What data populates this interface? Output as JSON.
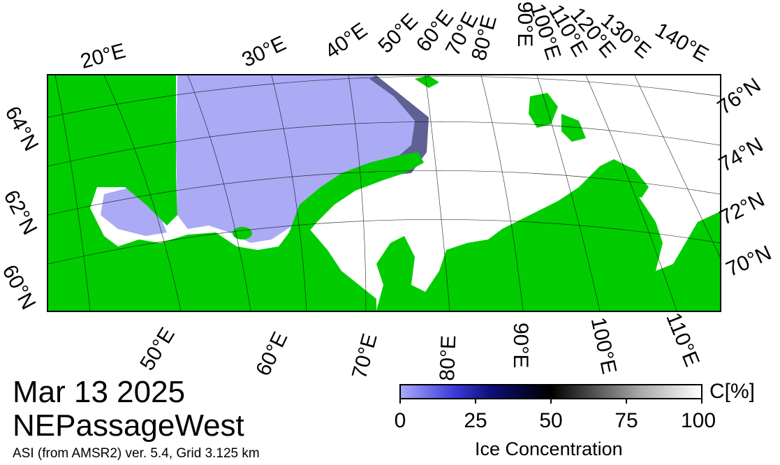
{
  "date": "Mar 13 2025",
  "region": "NEPassageWest",
  "source": "ASI (from AMSR2) ver. 5.4,  Grid 3.125 km",
  "colors": {
    "land": "#00cc00",
    "open_water": "#aaaaf5",
    "ice": "#ffffff",
    "frame": "#000000"
  },
  "top_lon_labels": [
    "20°E",
    "30°E",
    "40°E",
    "50°E",
    "60°E",
    "70°E",
    "80°E",
    "90°E",
    "100°E",
    "110°E",
    "120°E",
    "130°E",
    "140°E"
  ],
  "bottom_lon_labels": [
    "50°E",
    "60°E",
    "70°E",
    "80°E",
    "90°E",
    "100°E",
    "110°E"
  ],
  "left_lat_labels": [
    "64°N",
    "62°N",
    "60°N"
  ],
  "right_lat_labels": [
    "76°N",
    "74°N",
    "72°N",
    "70°N"
  ],
  "colorbar": {
    "ticks": [
      "0",
      "25",
      "50",
      "75",
      "100"
    ],
    "unit": "C[%]",
    "title": "Ice Concentration"
  }
}
